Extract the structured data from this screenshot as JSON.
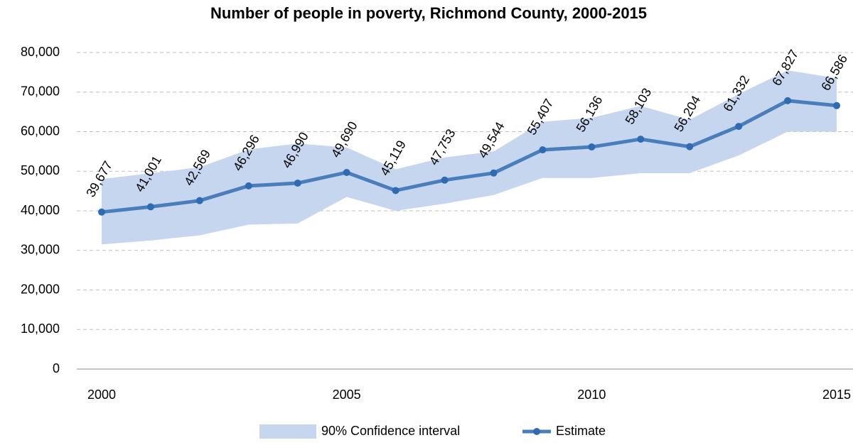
{
  "chart_data": {
    "type": "line",
    "title": "Number of people in poverty, Richmond County, 2000-2015",
    "x": [
      2000,
      2001,
      2002,
      2003,
      2004,
      2005,
      2006,
      2007,
      2008,
      2009,
      2010,
      2011,
      2012,
      2013,
      2014,
      2015
    ],
    "series": [
      {
        "name": "Estimate",
        "color": "#4a7ebb",
        "values": [
          39677,
          41001,
          42569,
          46296,
          46990,
          49690,
          45119,
          47753,
          49544,
          55407,
          56136,
          58103,
          56204,
          61332,
          67827,
          66586
        ],
        "value_labels": [
          "39,677",
          "41,001",
          "42,569",
          "46,296",
          "46,990",
          "49,690",
          "45,119",
          "47,753",
          "49,544",
          "55,407",
          "56,136",
          "58,103",
          "56,204",
          "61,332",
          "67,827",
          "66,586"
        ]
      }
    ],
    "band": {
      "name": "90% Confidence interval",
      "color": "#c6d6ef",
      "lower": [
        31500,
        32500,
        33800,
        36500,
        36800,
        43500,
        40000,
        41800,
        44000,
        48300,
        48300,
        49500,
        49500,
        54000,
        60000,
        60000
      ],
      "upper": [
        48000,
        49500,
        51000,
        55500,
        57000,
        56000,
        50500,
        53500,
        55000,
        62500,
        63500,
        66500,
        63000,
        69500,
        75500,
        73500
      ]
    },
    "xlim": [
      2000,
      2015
    ],
    "xticks": [
      2000,
      2005,
      2010,
      2015
    ],
    "ylim": [
      0,
      80000
    ],
    "yticks": [
      0,
      {
        "value": 10000,
        "label": "10,000"
      },
      {
        "value": 20000,
        "label": "20,000"
      },
      {
        "value": 30000,
        "label": "30,000"
      },
      {
        "value": 40000,
        "label": "40,000"
      },
      {
        "value": 50000,
        "label": "50,000"
      },
      {
        "value": 60000,
        "label": "60,000"
      },
      {
        "value": 70000,
        "label": "70,000"
      },
      {
        "value": 80000,
        "label": "80,000"
      }
    ],
    "grid": true,
    "legend": "bottom"
  }
}
